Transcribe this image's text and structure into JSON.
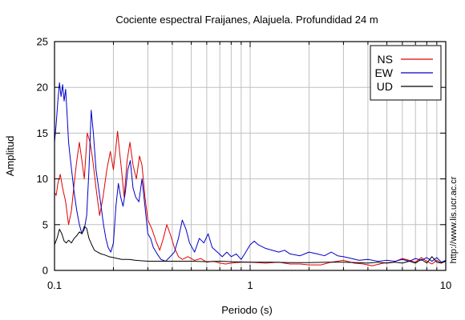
{
  "chart_data": {
    "type": "line",
    "title": "Cociente espectral Fraijanes, Alajuela. Profundidad 24 m",
    "xlabel": "Periodo (s)",
    "ylabel": "Amplitud",
    "xscale": "log",
    "xlim": [
      0.1,
      10
    ],
    "ylim": [
      0,
      25
    ],
    "xticks": [
      {
        "value": 0.1,
        "label": "0.1"
      },
      {
        "value": 1,
        "label": "1"
      },
      {
        "value": 10,
        "label": "10"
      }
    ],
    "yticks": [
      {
        "value": 0,
        "label": "0"
      },
      {
        "value": 5,
        "label": "5"
      },
      {
        "value": 10,
        "label": "10"
      },
      {
        "value": 15,
        "label": "15"
      },
      {
        "value": 20,
        "label": "20"
      },
      {
        "value": 25,
        "label": "25"
      }
    ],
    "grid": true,
    "legend_position": "top-right",
    "annotation": "http://www.lis.ucr.ac.cr",
    "series": [
      {
        "name": "NS",
        "color": "#e00000",
        "points": [
          [
            0.1,
            8.5
          ],
          [
            0.102,
            8.2
          ],
          [
            0.104,
            9.5
          ],
          [
            0.107,
            10.5
          ],
          [
            0.11,
            9.0
          ],
          [
            0.114,
            7.5
          ],
          [
            0.118,
            5.0
          ],
          [
            0.122,
            6.5
          ],
          [
            0.126,
            9.5
          ],
          [
            0.13,
            12.0
          ],
          [
            0.134,
            14.0
          ],
          [
            0.138,
            12.0
          ],
          [
            0.142,
            10.0
          ],
          [
            0.147,
            15.0
          ],
          [
            0.152,
            14.0
          ],
          [
            0.157,
            12.0
          ],
          [
            0.163,
            9.0
          ],
          [
            0.17,
            6.0
          ],
          [
            0.177,
            8.0
          ],
          [
            0.185,
            11.0
          ],
          [
            0.193,
            13.0
          ],
          [
            0.2,
            11.0
          ],
          [
            0.205,
            13.0
          ],
          [
            0.21,
            15.2
          ],
          [
            0.215,
            13.0
          ],
          [
            0.22,
            11.0
          ],
          [
            0.227,
            8.0
          ],
          [
            0.235,
            12.0
          ],
          [
            0.243,
            14.0
          ],
          [
            0.252,
            11.5
          ],
          [
            0.262,
            10.0
          ],
          [
            0.272,
            12.5
          ],
          [
            0.28,
            11.5
          ],
          [
            0.29,
            8.0
          ],
          [
            0.3,
            5.5
          ],
          [
            0.315,
            4.5
          ],
          [
            0.33,
            3.2
          ],
          [
            0.345,
            2.2
          ],
          [
            0.36,
            3.5
          ],
          [
            0.375,
            5.0
          ],
          [
            0.39,
            4.0
          ],
          [
            0.41,
            2.5
          ],
          [
            0.43,
            1.5
          ],
          [
            0.45,
            1.2
          ],
          [
            0.48,
            1.5
          ],
          [
            0.52,
            1.1
          ],
          [
            0.56,
            1.3
          ],
          [
            0.6,
            0.9
          ],
          [
            0.65,
            1.0
          ],
          [
            0.7,
            0.8
          ],
          [
            0.75,
            0.7
          ],
          [
            0.8,
            0.8
          ],
          [
            0.9,
            0.9
          ],
          [
            1.0,
            0.9
          ],
          [
            1.2,
            0.8
          ],
          [
            1.4,
            0.9
          ],
          [
            1.6,
            0.7
          ],
          [
            1.8,
            0.7
          ],
          [
            2.0,
            0.6
          ],
          [
            2.3,
            0.6
          ],
          [
            2.6,
            0.9
          ],
          [
            3.0,
            1.1
          ],
          [
            3.4,
            0.8
          ],
          [
            3.8,
            0.7
          ],
          [
            4.2,
            0.5
          ],
          [
            4.8,
            0.8
          ],
          [
            5.4,
            0.9
          ],
          [
            6.0,
            1.3
          ],
          [
            6.5,
            1.1
          ],
          [
            7.0,
            0.9
          ],
          [
            7.5,
            1.4
          ],
          [
            8.0,
            1.0
          ],
          [
            8.5,
            0.7
          ],
          [
            9.0,
            1.1
          ],
          [
            9.5,
            0.8
          ],
          [
            10.0,
            1.1
          ]
        ]
      },
      {
        "name": "EW",
        "color": "#0000c8",
        "points": [
          [
            0.1,
            14.0
          ],
          [
            0.102,
            16.0
          ],
          [
            0.104,
            18.5
          ],
          [
            0.106,
            20.5
          ],
          [
            0.108,
            19.0
          ],
          [
            0.11,
            20.3
          ],
          [
            0.112,
            18.5
          ],
          [
            0.114,
            19.8
          ],
          [
            0.116,
            17.0
          ],
          [
            0.118,
            14.0
          ],
          [
            0.12,
            12.5
          ],
          [
            0.123,
            10.5
          ],
          [
            0.126,
            8.5
          ],
          [
            0.13,
            6.5
          ],
          [
            0.134,
            5.0
          ],
          [
            0.138,
            4.0
          ],
          [
            0.142,
            4.5
          ],
          [
            0.146,
            6.0
          ],
          [
            0.15,
            11.0
          ],
          [
            0.154,
            17.5
          ],
          [
            0.158,
            15.0
          ],
          [
            0.163,
            11.0
          ],
          [
            0.168,
            9.0
          ],
          [
            0.173,
            7.0
          ],
          [
            0.178,
            5.0
          ],
          [
            0.183,
            3.5
          ],
          [
            0.188,
            2.5
          ],
          [
            0.194,
            2.0
          ],
          [
            0.2,
            3.0
          ],
          [
            0.206,
            7.0
          ],
          [
            0.212,
            9.5
          ],
          [
            0.218,
            8.0
          ],
          [
            0.224,
            7.0
          ],
          [
            0.23,
            8.5
          ],
          [
            0.237,
            11.0
          ],
          [
            0.244,
            12.0
          ],
          [
            0.252,
            9.0
          ],
          [
            0.26,
            8.0
          ],
          [
            0.27,
            7.5
          ],
          [
            0.28,
            10.0
          ],
          [
            0.29,
            7.0
          ],
          [
            0.3,
            4.0
          ],
          [
            0.31,
            3.5
          ],
          [
            0.32,
            2.5
          ],
          [
            0.335,
            1.8
          ],
          [
            0.35,
            1.2
          ],
          [
            0.37,
            1.0
          ],
          [
            0.39,
            1.5
          ],
          [
            0.41,
            2.0
          ],
          [
            0.43,
            3.5
          ],
          [
            0.45,
            5.5
          ],
          [
            0.47,
            4.5
          ],
          [
            0.49,
            3.0
          ],
          [
            0.52,
            2.0
          ],
          [
            0.55,
            3.5
          ],
          [
            0.58,
            3.0
          ],
          [
            0.61,
            4.0
          ],
          [
            0.64,
            2.5
          ],
          [
            0.68,
            2.0
          ],
          [
            0.72,
            1.5
          ],
          [
            0.76,
            2.0
          ],
          [
            0.8,
            1.5
          ],
          [
            0.85,
            1.8
          ],
          [
            0.9,
            1.2
          ],
          [
            0.95,
            2.0
          ],
          [
            1.0,
            2.8
          ],
          [
            1.05,
            3.2
          ],
          [
            1.1,
            2.8
          ],
          [
            1.2,
            2.4
          ],
          [
            1.3,
            2.2
          ],
          [
            1.4,
            2.0
          ],
          [
            1.5,
            2.2
          ],
          [
            1.6,
            1.8
          ],
          [
            1.8,
            1.6
          ],
          [
            2.0,
            2.0
          ],
          [
            2.2,
            1.8
          ],
          [
            2.4,
            1.6
          ],
          [
            2.6,
            2.0
          ],
          [
            2.8,
            1.6
          ],
          [
            3.0,
            1.5
          ],
          [
            3.3,
            1.3
          ],
          [
            3.6,
            1.1
          ],
          [
            4.0,
            1.2
          ],
          [
            4.5,
            1.0
          ],
          [
            5.0,
            1.1
          ],
          [
            5.5,
            1.0
          ],
          [
            6.0,
            1.2
          ],
          [
            6.5,
            1.0
          ],
          [
            7.0,
            1.3
          ],
          [
            7.5,
            1.1
          ],
          [
            8.0,
            1.4
          ],
          [
            8.5,
            1.0
          ],
          [
            9.0,
            1.4
          ],
          [
            9.5,
            0.9
          ],
          [
            10.0,
            1.1
          ]
        ]
      },
      {
        "name": "UD",
        "color": "#000000",
        "points": [
          [
            0.1,
            2.8
          ],
          [
            0.103,
            3.5
          ],
          [
            0.106,
            4.5
          ],
          [
            0.109,
            4.0
          ],
          [
            0.112,
            3.2
          ],
          [
            0.115,
            3.0
          ],
          [
            0.118,
            3.3
          ],
          [
            0.122,
            3.0
          ],
          [
            0.126,
            3.5
          ],
          [
            0.13,
            3.8
          ],
          [
            0.134,
            4.2
          ],
          [
            0.138,
            4.0
          ],
          [
            0.142,
            4.8
          ],
          [
            0.146,
            4.6
          ],
          [
            0.15,
            3.5
          ],
          [
            0.155,
            2.8
          ],
          [
            0.16,
            2.2
          ],
          [
            0.166,
            2.0
          ],
          [
            0.173,
            1.8
          ],
          [
            0.18,
            1.7
          ],
          [
            0.19,
            1.5
          ],
          [
            0.2,
            1.4
          ],
          [
            0.21,
            1.3
          ],
          [
            0.22,
            1.2
          ],
          [
            0.24,
            1.2
          ],
          [
            0.26,
            1.1
          ],
          [
            0.28,
            1.05
          ],
          [
            0.3,
            1.0
          ],
          [
            0.35,
            1.0
          ],
          [
            0.4,
            1.0
          ],
          [
            0.5,
            1.0
          ],
          [
            0.6,
            0.95
          ],
          [
            0.7,
            1.0
          ],
          [
            0.8,
            0.95
          ],
          [
            1.0,
            0.9
          ],
          [
            1.3,
            0.9
          ],
          [
            1.6,
            0.85
          ],
          [
            2.0,
            0.85
          ],
          [
            2.5,
            0.9
          ],
          [
            3.0,
            0.9
          ],
          [
            3.5,
            0.85
          ],
          [
            4.0,
            0.8
          ],
          [
            4.5,
            0.9
          ],
          [
            5.0,
            0.8
          ],
          [
            5.5,
            0.9
          ],
          [
            6.0,
            0.8
          ],
          [
            6.5,
            1.0
          ],
          [
            7.0,
            0.8
          ],
          [
            7.5,
            1.2
          ],
          [
            8.0,
            0.8
          ],
          [
            8.5,
            1.5
          ],
          [
            9.0,
            0.9
          ],
          [
            9.5,
            0.8
          ],
          [
            10.0,
            1.0
          ]
        ]
      }
    ]
  }
}
